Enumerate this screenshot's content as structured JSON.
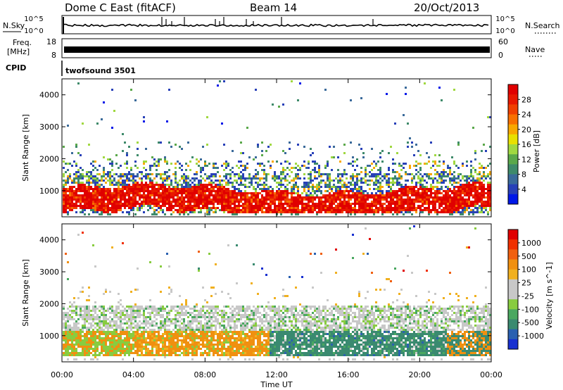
{
  "header": {
    "station": "Dome C East (fitACF)",
    "beam": "Beam 14",
    "date": "20/Oct/2013"
  },
  "side_labels": {
    "nsky": "N.Sky",
    "freq_line1": "Freq.",
    "freq_line2": "[MHz]",
    "cpid": "CPID",
    "nsearch": "N.Search",
    "nave": "Nave"
  },
  "cpid_text": "twofsound 3501",
  "strip_ticks": {
    "noise_left": [
      "10^5",
      "10^0"
    ],
    "noise_right": [
      "10^5",
      "10^0"
    ],
    "freq_left": [
      "18",
      "8"
    ],
    "nave_right": [
      "60",
      "0"
    ]
  },
  "chart_data": [
    {
      "type": "heatmap",
      "title": "",
      "xlabel": "Time UT",
      "ylabel": "Slant Range [km]",
      "ylim": [
        180,
        4500
      ],
      "yticks": [
        1000,
        2000,
        3000,
        4000
      ],
      "xlim_hours": [
        0,
        24
      ],
      "xticks": [
        "00:00",
        "04:00",
        "08:00",
        "12:00",
        "16:00",
        "20:00",
        "00:00"
      ],
      "colorbar": {
        "label": "Power [dB]",
        "ticks": [
          "4",
          "8",
          "12",
          "16",
          "20",
          "24",
          "28"
        ],
        "colors": [
          "#0018e8",
          "#2840b8",
          "#3a6a9a",
          "#3e8a6a",
          "#5aa84a",
          "#a0d840",
          "#e8e000",
          "#f8a800",
          "#f87000",
          "#f04000",
          "#e81800",
          "#e00000"
        ]
      },
      "bands": [
        {
          "range_km": [
            600,
            1450
          ],
          "level": "high",
          "description": "dense scatter band"
        },
        {
          "range_km": [
            1450,
            2000
          ],
          "level": "low"
        }
      ]
    },
    {
      "type": "heatmap",
      "title": "",
      "xlabel": "Time UT",
      "ylabel": "Slant Range [km]",
      "ylim": [
        180,
        4500
      ],
      "yticks": [
        1000,
        2000,
        3000,
        4000
      ],
      "xlim_hours": [
        0,
        24
      ],
      "xticks": [
        "00:00",
        "04:00",
        "08:00",
        "12:00",
        "16:00",
        "20:00",
        "00:00"
      ],
      "colorbar": {
        "label": "Velocity [m s^-1]",
        "ticks": [
          "1000",
          "500",
          "100",
          "25",
          "-25",
          "-100",
          "-500",
          "-1000"
        ],
        "colors": [
          "#1830d0",
          "#2a60b0",
          "#3a8a70",
          "#4aa860",
          "#88cc40",
          "#c8c8c8",
          "#c8c8c8",
          "#f0b020",
          "#f09010",
          "#f06010",
          "#f03000",
          "#e00000"
        ]
      }
    }
  ]
}
